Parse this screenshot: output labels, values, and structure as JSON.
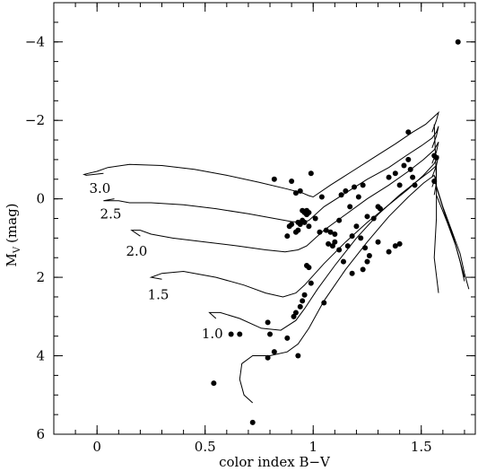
{
  "chart_data": {
    "type": "scatter",
    "title": "",
    "xlabel": "color index B−V",
    "ylabel_main": "M",
    "ylabel_sub": "V",
    "ylabel_unit": "(mag)",
    "xlim": [
      -0.2,
      1.75
    ],
    "ylim": [
      6,
      -5
    ],
    "y_inverted": true,
    "grid": false,
    "legend": "none",
    "x_ticks": [
      {
        "value": 0,
        "label": "0"
      },
      {
        "value": 0.5,
        "label": "0.5"
      },
      {
        "value": 1.0,
        "label": "1"
      },
      {
        "value": 1.5,
        "label": "1.5"
      }
    ],
    "x_minor_step": 0.1,
    "y_ticks": [
      {
        "value": -4,
        "label": "−4"
      },
      {
        "value": -2,
        "label": "−2"
      },
      {
        "value": 0,
        "label": "0"
      },
      {
        "value": 2,
        "label": "2"
      },
      {
        "value": 4,
        "label": "4"
      },
      {
        "value": 6,
        "label": "6"
      }
    ],
    "y_minor_step": 0.5,
    "series": [
      {
        "kind": "points",
        "x": [
          1.67,
          1.44,
          0.99,
          0.82,
          0.9,
          0.94,
          0.92,
          0.95,
          0.96,
          0.97,
          0.98,
          0.97,
          0.95,
          0.93,
          0.94,
          0.96,
          0.98,
          1.01,
          0.9,
          0.89,
          0.88,
          0.93,
          0.92,
          1.03,
          1.04,
          1.06,
          1.08,
          1.1,
          1.12,
          1.13,
          1.15,
          1.17,
          1.19,
          1.21,
          1.23,
          1.25,
          1.28,
          1.3,
          1.31,
          1.35,
          1.38,
          1.4,
          1.42,
          1.44,
          1.45,
          1.46,
          1.47,
          1.56,
          1.57,
          1.56,
          1.07,
          1.09,
          1.1,
          1.12,
          1.14,
          1.16,
          1.18,
          1.2,
          1.22,
          1.24,
          1.26,
          1.3,
          1.35,
          1.4,
          1.38,
          1.25,
          1.23,
          1.18,
          0.97,
          0.98,
          0.99,
          0.96,
          0.95,
          0.94,
          0.92,
          0.91,
          1.05,
          0.79,
          0.8,
          0.82,
          0.88,
          0.62,
          0.66,
          0.93,
          0.79,
          0.54,
          0.72
        ],
        "y": [
          -4.0,
          -1.7,
          -0.65,
          -0.5,
          -0.45,
          -0.2,
          -0.15,
          0.3,
          0.35,
          0.3,
          0.35,
          0.4,
          0.55,
          0.6,
          0.65,
          0.6,
          0.7,
          0.5,
          0.65,
          0.7,
          0.95,
          0.8,
          0.85,
          0.85,
          -0.05,
          0.8,
          0.85,
          0.9,
          0.55,
          -0.1,
          -0.2,
          0.2,
          -0.3,
          -0.05,
          -0.35,
          0.45,
          0.5,
          0.2,
          0.25,
          -0.55,
          -0.65,
          -0.35,
          -0.85,
          -1.0,
          -0.75,
          -0.55,
          -0.35,
          -1.1,
          -1.05,
          -0.45,
          1.15,
          1.2,
          1.1,
          1.3,
          1.6,
          1.2,
          0.95,
          0.7,
          1.0,
          1.25,
          1.45,
          1.1,
          1.35,
          1.15,
          1.2,
          1.6,
          1.8,
          1.9,
          1.7,
          1.75,
          2.15,
          2.45,
          2.6,
          2.75,
          2.9,
          3.0,
          2.65,
          3.15,
          3.45,
          3.9,
          3.55,
          3.45,
          3.45,
          4.0,
          4.05,
          4.7,
          5.7
        ]
      },
      {
        "kind": "track",
        "label": "3.0",
        "x": [
          0.03,
          -0.05,
          -0.06,
          -0.04,
          0.0,
          0.05,
          0.15,
          0.3,
          0.45,
          0.6,
          0.75,
          0.88,
          0.95,
          0.98,
          1.0,
          1.08,
          1.18,
          1.28,
          1.38,
          1.46,
          1.52,
          1.55,
          1.57,
          1.58,
          1.57,
          1.55
        ],
        "y": [
          -0.65,
          -0.6,
          -0.62,
          -0.65,
          -0.7,
          -0.8,
          -0.88,
          -0.85,
          -0.75,
          -0.6,
          -0.42,
          -0.25,
          -0.15,
          -0.08,
          -0.05,
          -0.35,
          -0.7,
          -1.05,
          -1.4,
          -1.7,
          -1.9,
          -2.05,
          -2.15,
          -2.2,
          -2.0,
          -1.7
        ]
      },
      {
        "kind": "track",
        "label": "2.5",
        "x": [
          0.08,
          0.03,
          0.05,
          0.1,
          0.15,
          0.25,
          0.4,
          0.55,
          0.7,
          0.82,
          0.9,
          0.95,
          0.98,
          1.05,
          1.15,
          1.25,
          1.35,
          1.43,
          1.5,
          1.55,
          1.57,
          1.58,
          1.57,
          1.55
        ],
        "y": [
          0.0,
          0.05,
          0.05,
          0.05,
          0.1,
          0.1,
          0.15,
          0.25,
          0.38,
          0.5,
          0.58,
          0.6,
          0.55,
          0.2,
          -0.15,
          -0.5,
          -0.8,
          -1.1,
          -1.35,
          -1.55,
          -1.7,
          -1.85,
          -1.6,
          -1.3
        ]
      },
      {
        "kind": "track",
        "label": "2.0",
        "x": [
          0.2,
          0.16,
          0.2,
          0.25,
          0.35,
          0.5,
          0.65,
          0.78,
          0.87,
          0.93,
          0.97,
          1.05,
          1.15,
          1.25,
          1.35,
          1.44,
          1.51,
          1.56,
          1.58,
          1.57,
          1.55
        ],
        "y": [
          0.95,
          0.8,
          0.8,
          0.9,
          1.0,
          1.1,
          1.2,
          1.3,
          1.35,
          1.3,
          1.2,
          0.8,
          0.4,
          0.0,
          -0.35,
          -0.7,
          -1.0,
          -1.25,
          -1.45,
          -1.2,
          -0.9
        ]
      },
      {
        "kind": "track",
        "label": "1.5",
        "x": [
          0.3,
          0.25,
          0.3,
          0.4,
          0.55,
          0.68,
          0.78,
          0.86,
          0.92,
          0.96,
          1.05,
          1.15,
          1.25,
          1.35,
          1.44,
          1.51,
          1.56,
          1.58,
          1.57,
          1.55
        ],
        "y": [
          2.05,
          2.0,
          1.9,
          1.85,
          2.0,
          2.2,
          2.4,
          2.5,
          2.4,
          2.2,
          1.65,
          1.1,
          0.6,
          0.15,
          -0.25,
          -0.6,
          -0.9,
          -1.1,
          -0.85,
          -0.55
        ]
      },
      {
        "kind": "track",
        "label": "1.0",
        "x": [
          0.55,
          0.52,
          0.57,
          0.66,
          0.76,
          0.85,
          0.92,
          0.96,
          1.02,
          1.1,
          1.2,
          1.3,
          1.4,
          1.48,
          1.54,
          1.57,
          1.57,
          1.55
        ],
        "y": [
          3.05,
          2.9,
          2.9,
          3.05,
          3.3,
          3.35,
          3.1,
          2.8,
          2.3,
          1.7,
          1.0,
          0.4,
          -0.1,
          -0.45,
          -0.7,
          -0.85,
          -0.6,
          -0.3
        ]
      },
      {
        "kind": "track",
        "label": "",
        "x": [
          0.72,
          0.68,
          0.66,
          0.67,
          0.72,
          0.8,
          0.88,
          0.93,
          0.98,
          1.05,
          1.15,
          1.25,
          1.35,
          1.44,
          1.51,
          1.56,
          1.57,
          1.56
        ],
        "y": [
          5.2,
          5.0,
          4.6,
          4.2,
          4.0,
          4.0,
          3.9,
          3.7,
          3.3,
          2.6,
          1.8,
          1.1,
          0.45,
          -0.05,
          -0.4,
          -0.6,
          -0.4,
          -0.1
        ]
      },
      {
        "kind": "track",
        "label": "",
        "x": [
          1.56,
          1.6,
          1.64,
          1.68,
          1.7,
          1.72
        ],
        "y": [
          -0.5,
          0.2,
          0.8,
          1.4,
          1.9,
          2.3
        ]
      },
      {
        "kind": "track",
        "label": "",
        "x": [
          1.57,
          1.61,
          1.65,
          1.68,
          1.7
        ],
        "y": [
          -0.3,
          0.4,
          1.0,
          1.6,
          2.1
        ]
      },
      {
        "kind": "track",
        "label": "",
        "x": [
          1.57,
          1.62,
          1.66,
          1.7
        ],
        "y": [
          -0.1,
          0.6,
          1.2,
          2.0
        ]
      },
      {
        "kind": "track",
        "label": "",
        "x": [
          1.56,
          1.57,
          1.57,
          1.56,
          1.58
        ],
        "y": [
          -1.9,
          -0.5,
          0.5,
          1.5,
          2.4
        ]
      }
    ]
  }
}
